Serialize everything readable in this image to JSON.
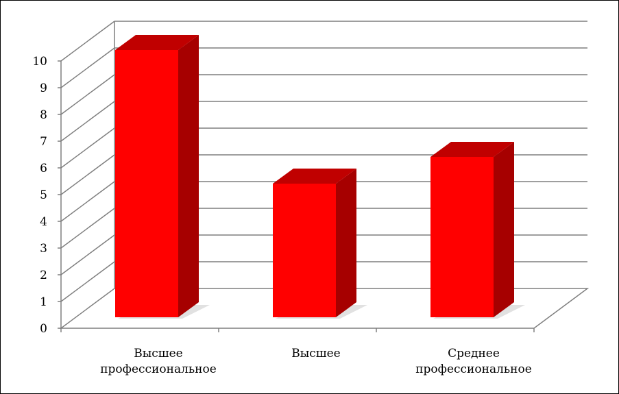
{
  "chart_data": {
    "type": "bar",
    "categories": [
      [
        "Высшее",
        "профессиональное"
      ],
      [
        "Высшее"
      ],
      [
        "Среднее",
        "профессиональное"
      ]
    ],
    "values": [
      10,
      5,
      6
    ],
    "ylim": [
      0,
      10
    ],
    "yticks": [
      "0",
      "1",
      "2",
      "3",
      "4",
      "5",
      "6",
      "7",
      "8",
      "9",
      "10"
    ],
    "grid": true,
    "legend": "none",
    "colors": {
      "bar_front": "#ff0000",
      "bar_side": "#a60000",
      "bar_top": "#c00000",
      "grid": "#7f7f7f",
      "shadow": "#d9d9d9"
    }
  }
}
